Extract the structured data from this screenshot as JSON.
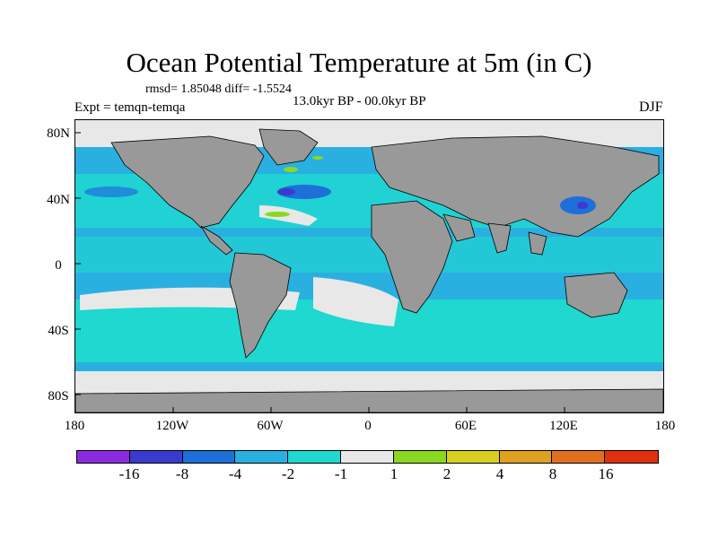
{
  "title": "Ocean Potential Temperature at 5m (in C)",
  "stats": "rmsd= 1.85048 diff= -1.5524",
  "experiment": "Expt = temqn-temqa",
  "period": "13.0kyr BP - 00.0kyr BP",
  "season": "DJF",
  "lat_labels": [
    "80N",
    "40N",
    "0",
    "40S",
    "80S"
  ],
  "lon_labels": [
    "180",
    "120W",
    "60W",
    "0",
    "60E",
    "120E",
    "180"
  ],
  "colorbar": {
    "labels": [
      "-16",
      "-8",
      "-4",
      "-2",
      "-1",
      "1",
      "2",
      "4",
      "8",
      "16"
    ],
    "colors": [
      "#8a2be2",
      "#3a3ad0",
      "#1f6fd8",
      "#2ab0e0",
      "#1fd8d0",
      "#e8e8e8",
      "#8ad820",
      "#d8d020",
      "#e0a020",
      "#e07020",
      "#e03010"
    ]
  },
  "colors": {
    "land": "#999999",
    "no_data": "#e8e8e8",
    "coastline": "#000000"
  }
}
